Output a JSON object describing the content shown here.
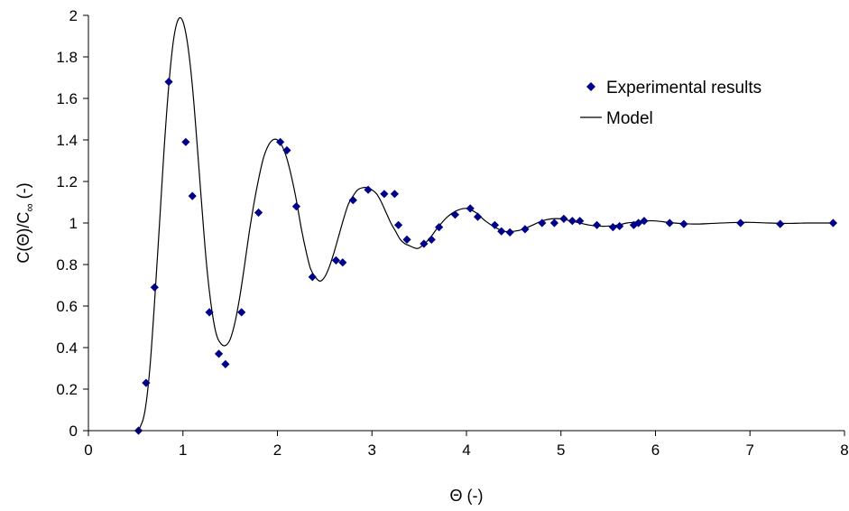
{
  "chart_data": {
    "type": "scatter",
    "title": "",
    "xlabel": "Θ (-)",
    "ylabel": "C(Θ)/C∞ (-)",
    "ylabel_parts": {
      "main": "C(Θ)/C",
      "sub": "∞",
      "tail": " (-)"
    },
    "xlim": [
      0,
      8
    ],
    "ylim": [
      0,
      2
    ],
    "xticks": [
      "0",
      "1",
      "2",
      "3",
      "4",
      "5",
      "6",
      "7",
      "8"
    ],
    "yticks": [
      "0",
      "0.2",
      "0.4",
      "0.6",
      "0.8",
      "1",
      "1.2",
      "1.4",
      "1.6",
      "1.8",
      "2"
    ],
    "grid": false,
    "legend_position": "top-right",
    "series": [
      {
        "name": "Experimental results",
        "kind": "markers",
        "marker": "diamond",
        "color": "#00008B",
        "points": [
          [
            0.53,
            0.0
          ],
          [
            0.61,
            0.23
          ],
          [
            0.7,
            0.69
          ],
          [
            0.85,
            1.68
          ],
          [
            1.03,
            1.39
          ],
          [
            1.1,
            1.13
          ],
          [
            1.28,
            0.57
          ],
          [
            1.38,
            0.37
          ],
          [
            1.45,
            0.32
          ],
          [
            1.62,
            0.57
          ],
          [
            1.8,
            1.05
          ],
          [
            2.03,
            1.39
          ],
          [
            2.1,
            1.35
          ],
          [
            2.2,
            1.08
          ],
          [
            2.37,
            0.74
          ],
          [
            2.62,
            0.82
          ],
          [
            2.69,
            0.81
          ],
          [
            2.8,
            1.11
          ],
          [
            2.96,
            1.16
          ],
          [
            3.13,
            1.14
          ],
          [
            3.24,
            1.14
          ],
          [
            3.28,
            0.99
          ],
          [
            3.37,
            0.92
          ],
          [
            3.55,
            0.9
          ],
          [
            3.63,
            0.92
          ],
          [
            3.71,
            0.98
          ],
          [
            3.88,
            1.04
          ],
          [
            4.04,
            1.07
          ],
          [
            4.12,
            1.03
          ],
          [
            4.3,
            0.99
          ],
          [
            4.37,
            0.96
          ],
          [
            4.46,
            0.955
          ],
          [
            4.62,
            0.97
          ],
          [
            4.8,
            1.0
          ],
          [
            4.93,
            1.0
          ],
          [
            5.03,
            1.02
          ],
          [
            5.12,
            1.01
          ],
          [
            5.2,
            1.01
          ],
          [
            5.38,
            0.99
          ],
          [
            5.55,
            0.98
          ],
          [
            5.62,
            0.985
          ],
          [
            5.77,
            0.99
          ],
          [
            5.82,
            1.0
          ],
          [
            5.88,
            1.01
          ],
          [
            6.15,
            1.0
          ],
          [
            6.3,
            0.995
          ],
          [
            6.9,
            1.0
          ],
          [
            7.32,
            0.995
          ],
          [
            7.88,
            1.0
          ]
        ]
      },
      {
        "name": "Model",
        "kind": "line",
        "color": "#000000",
        "points": [
          [
            0.5,
            0.0
          ],
          [
            0.55,
            0.02
          ],
          [
            0.6,
            0.1
          ],
          [
            0.65,
            0.3
          ],
          [
            0.7,
            0.62
          ],
          [
            0.75,
            0.98
          ],
          [
            0.8,
            1.35
          ],
          [
            0.85,
            1.66
          ],
          [
            0.9,
            1.88
          ],
          [
            0.95,
            1.98
          ],
          [
            1.0,
            1.97
          ],
          [
            1.05,
            1.86
          ],
          [
            1.1,
            1.66
          ],
          [
            1.15,
            1.38
          ],
          [
            1.2,
            1.08
          ],
          [
            1.25,
            0.8
          ],
          [
            1.3,
            0.6
          ],
          [
            1.35,
            0.47
          ],
          [
            1.4,
            0.42
          ],
          [
            1.45,
            0.41
          ],
          [
            1.5,
            0.44
          ],
          [
            1.55,
            0.52
          ],
          [
            1.6,
            0.64
          ],
          [
            1.65,
            0.79
          ],
          [
            1.7,
            0.95
          ],
          [
            1.75,
            1.09
          ],
          [
            1.8,
            1.21
          ],
          [
            1.85,
            1.31
          ],
          [
            1.9,
            1.37
          ],
          [
            1.95,
            1.4
          ],
          [
            2.0,
            1.4
          ],
          [
            2.05,
            1.37
          ],
          [
            2.1,
            1.31
          ],
          [
            2.15,
            1.22
          ],
          [
            2.2,
            1.11
          ],
          [
            2.25,
            0.98
          ],
          [
            2.3,
            0.87
          ],
          [
            2.35,
            0.78
          ],
          [
            2.4,
            0.74
          ],
          [
            2.45,
            0.72
          ],
          [
            2.5,
            0.74
          ],
          [
            2.55,
            0.79
          ],
          [
            2.6,
            0.86
          ],
          [
            2.65,
            0.94
          ],
          [
            2.7,
            1.02
          ],
          [
            2.75,
            1.09
          ],
          [
            2.8,
            1.13
          ],
          [
            2.85,
            1.16
          ],
          [
            2.9,
            1.17
          ],
          [
            2.95,
            1.17
          ],
          [
            3.0,
            1.16
          ],
          [
            3.05,
            1.14
          ],
          [
            3.1,
            1.1
          ],
          [
            3.15,
            1.05
          ],
          [
            3.2,
            1.0
          ],
          [
            3.25,
            0.96
          ],
          [
            3.3,
            0.92
          ],
          [
            3.35,
            0.9
          ],
          [
            3.4,
            0.89
          ],
          [
            3.45,
            0.88
          ],
          [
            3.5,
            0.88
          ],
          [
            3.6,
            0.92
          ],
          [
            3.7,
            0.98
          ],
          [
            3.8,
            1.03
          ],
          [
            3.9,
            1.06
          ],
          [
            4.0,
            1.07
          ],
          [
            4.1,
            1.05
          ],
          [
            4.2,
            1.01
          ],
          [
            4.3,
            0.98
          ],
          [
            4.4,
            0.96
          ],
          [
            4.5,
            0.96
          ],
          [
            4.6,
            0.97
          ],
          [
            4.7,
            0.99
          ],
          [
            4.8,
            1.01
          ],
          [
            4.9,
            1.02
          ],
          [
            5.0,
            1.02
          ],
          [
            5.1,
            1.01
          ],
          [
            5.2,
            1.0
          ],
          [
            5.3,
            0.99
          ],
          [
            5.4,
            0.985
          ],
          [
            5.5,
            0.985
          ],
          [
            5.6,
            0.99
          ],
          [
            5.7,
            1.0
          ],
          [
            5.8,
            1.005
          ],
          [
            5.9,
            1.01
          ],
          [
            6.0,
            1.01
          ],
          [
            6.2,
            1.0
          ],
          [
            6.4,
            0.995
          ],
          [
            6.6,
            0.998
          ],
          [
            6.8,
            1.002
          ],
          [
            7.0,
            1.003
          ],
          [
            7.2,
            1.0
          ],
          [
            7.4,
            0.998
          ],
          [
            7.6,
            1.0
          ],
          [
            7.9,
            1.0
          ]
        ]
      }
    ]
  }
}
